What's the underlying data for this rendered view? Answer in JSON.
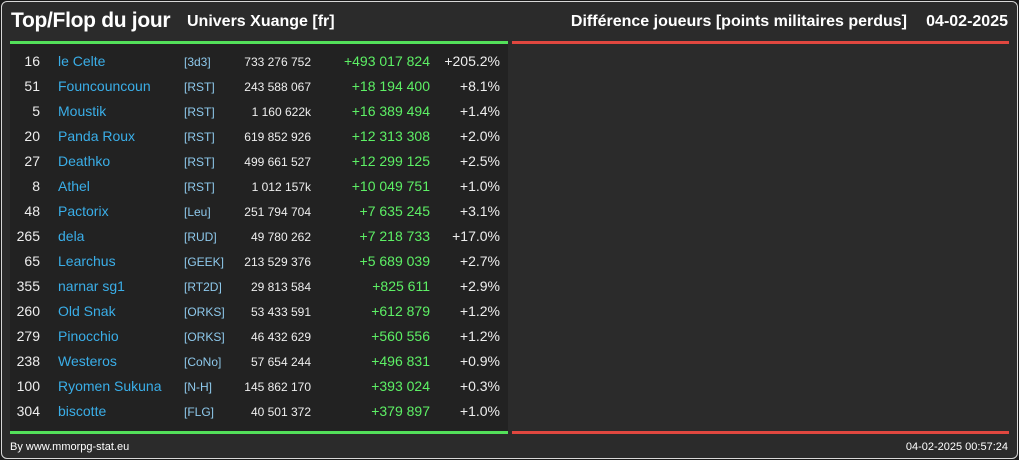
{
  "header": {
    "title": "Top/Flop du jour",
    "universe": "Univers Xuange [fr]",
    "metric": "Différence joueurs [points militaires perdus]",
    "date": "04-02-2025"
  },
  "colors": {
    "top_accent": "#53e05a",
    "flop_accent": "#e0473f",
    "player_link": "#3aaee8",
    "alliance_link": "#8ec9ec",
    "gain": "#5df065"
  },
  "top_rows": [
    {
      "rank": "16",
      "name": "le Celte",
      "alliance": "[3d3]",
      "points": "733 276 752",
      "diff": "+493 017 824",
      "pct": "+205.2%"
    },
    {
      "rank": "51",
      "name": "Founcouncoun",
      "alliance": "[RST]",
      "points": "243 588 067",
      "diff": "+18 194 400",
      "pct": "+8.1%"
    },
    {
      "rank": "5",
      "name": "Moustik",
      "alliance": "[RST]",
      "points": "1 160 622k",
      "diff": "+16 389 494",
      "pct": "+1.4%"
    },
    {
      "rank": "20",
      "name": "Panda Roux",
      "alliance": "[RST]",
      "points": "619 852 926",
      "diff": "+12 313 308",
      "pct": "+2.0%"
    },
    {
      "rank": "27",
      "name": "Deathko",
      "alliance": "[RST]",
      "points": "499 661 527",
      "diff": "+12 299 125",
      "pct": "+2.5%"
    },
    {
      "rank": "8",
      "name": "Athel",
      "alliance": "[RST]",
      "points": "1 012 157k",
      "diff": "+10 049 751",
      "pct": "+1.0%"
    },
    {
      "rank": "48",
      "name": "Pactorix",
      "alliance": "[Leu]",
      "points": "251 794 704",
      "diff": "+7 635 245",
      "pct": "+3.1%"
    },
    {
      "rank": "265",
      "name": "dela",
      "alliance": "[RUD]",
      "points": "49 780 262",
      "diff": "+7 218 733",
      "pct": "+17.0%"
    },
    {
      "rank": "65",
      "name": "Learchus",
      "alliance": "[GEEK]",
      "points": "213 529 376",
      "diff": "+5 689 039",
      "pct": "+2.7%"
    },
    {
      "rank": "355",
      "name": "narnar sg1",
      "alliance": "[RT2D]",
      "points": "29 813 584",
      "diff": "+825 611",
      "pct": "+2.9%"
    },
    {
      "rank": "260",
      "name": "Old Snak",
      "alliance": "[ORKS]",
      "points": "53 433 591",
      "diff": "+612 879",
      "pct": "+1.2%"
    },
    {
      "rank": "279",
      "name": "Pinocchio",
      "alliance": "[ORKS]",
      "points": "46 432 629",
      "diff": "+560 556",
      "pct": "+1.2%"
    },
    {
      "rank": "238",
      "name": "Westeros",
      "alliance": "[CoNo]",
      "points": "57 654 244",
      "diff": "+496 831",
      "pct": "+0.9%"
    },
    {
      "rank": "100",
      "name": "Ryomen Sukuna",
      "alliance": "[N-H]",
      "points": "145 862 170",
      "diff": "+393 024",
      "pct": "+0.3%"
    },
    {
      "rank": "304",
      "name": "biscotte",
      "alliance": "[FLG]",
      "points": "40 501 372",
      "diff": "+379 897",
      "pct": "+1.0%"
    }
  ],
  "footer": {
    "credit": "By www.mmorpg-stat.eu",
    "timestamp": "04-02-2025 00:57:24"
  }
}
